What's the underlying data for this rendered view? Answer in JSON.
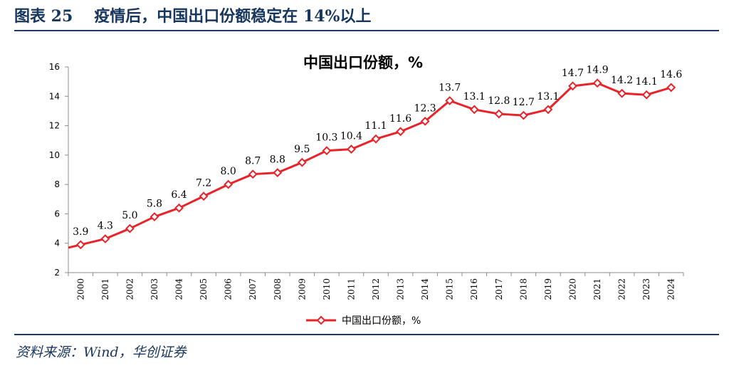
{
  "header": {
    "figure_label": "图表 25",
    "figure_title": "疫情后，中国出口份额稳定在 14%以上"
  },
  "source": "资料来源：Wind，华创证券",
  "colors": {
    "header_text": "#17365d",
    "rule": "#1f3864",
    "series_line": "#e8232a",
    "marker_fill": "#ffffff",
    "axis": "#8c8c8c",
    "text": "#000000"
  },
  "chart_data": {
    "type": "line",
    "title": "中国出口份额，%",
    "xlabel": "",
    "ylabel": "",
    "ylim": [
      2,
      16
    ],
    "yticks": [
      2,
      4,
      6,
      8,
      10,
      12,
      14,
      16
    ],
    "grid": false,
    "legend_position": "bottom",
    "categories": [
      "2000",
      "2001",
      "2002",
      "2003",
      "2004",
      "2005",
      "2006",
      "2007",
      "2008",
      "2009",
      "2010",
      "2011",
      "2012",
      "2013",
      "2014",
      "2015",
      "2016",
      "2017",
      "2018",
      "2019",
      "2020",
      "2021",
      "2022",
      "2023",
      "2024"
    ],
    "series": [
      {
        "name": "中国出口份额，%",
        "marker": "diamond",
        "values": [
          3.9,
          4.3,
          5.0,
          5.8,
          6.4,
          7.2,
          8.0,
          8.7,
          8.8,
          9.5,
          10.3,
          10.4,
          11.1,
          11.6,
          12.3,
          13.7,
          13.1,
          12.8,
          12.7,
          13.1,
          14.7,
          14.9,
          14.2,
          14.1,
          14.6
        ],
        "data_labels": [
          "3.9",
          "4.3",
          "5.0",
          "5.8",
          "6.4",
          "7.2",
          "8.0",
          "8.7",
          "8.8",
          "9.5",
          "10.3",
          "10.4",
          "11.1",
          "11.6",
          "12.3",
          "13.7",
          "13.1",
          "12.8",
          "12.7",
          "13.1",
          "14.7",
          "14.9",
          "14.2",
          "14.1",
          "14.6"
        ]
      }
    ]
  }
}
